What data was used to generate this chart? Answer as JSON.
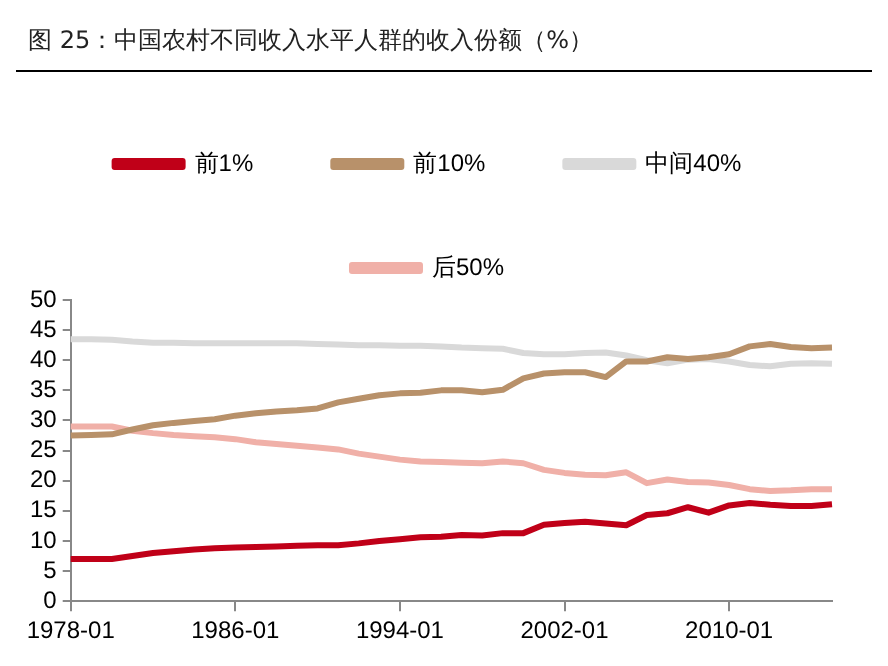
{
  "chart_data": {
    "type": "line",
    "title": "图 25：中国农村不同收入水平人群的收入份额（%）",
    "categories": [
      "1978-01",
      null,
      null,
      null,
      null,
      null,
      null,
      null,
      "1986-01",
      null,
      null,
      null,
      null,
      null,
      null,
      null,
      "1994-01",
      null,
      null,
      null,
      null,
      null,
      null,
      null,
      "2002-01",
      null,
      null,
      null,
      null,
      null,
      null,
      null,
      "2010-01",
      null,
      null,
      null,
      null,
      null
    ],
    "series": [
      {
        "name": "前1%",
        "color": "#c00018",
        "values": [
          7.0,
          7.0,
          7.0,
          7.5,
          8.0,
          8.3,
          8.6,
          8.8,
          8.9,
          9.0,
          9.1,
          9.2,
          9.3,
          9.3,
          9.6,
          10.0,
          10.3,
          10.6,
          10.7,
          11.0,
          10.9,
          11.3,
          11.3,
          12.7,
          13.0,
          13.2,
          12.9,
          12.6,
          14.3,
          14.6,
          15.6,
          14.7,
          15.9,
          16.3,
          16.0,
          15.8,
          15.8,
          16.1
        ]
      },
      {
        "name": "前10%",
        "color": "#b8916a",
        "values": [
          27.5,
          27.6,
          27.7,
          28.5,
          29.2,
          29.6,
          29.9,
          30.2,
          30.8,
          31.2,
          31.5,
          31.7,
          32.0,
          33.0,
          33.6,
          34.2,
          34.5,
          34.6,
          35.0,
          35.0,
          34.7,
          35.1,
          37.0,
          37.8,
          38.0,
          38.0,
          37.2,
          39.8,
          39.8,
          40.5,
          40.2,
          40.5,
          41.0,
          42.3,
          42.7,
          42.2,
          42.0,
          42.1
        ]
      },
      {
        "name": "中间40%",
        "color": "#d9d9d9",
        "values": [
          43.5,
          43.5,
          43.4,
          43.1,
          42.9,
          42.9,
          42.8,
          42.8,
          42.8,
          42.8,
          42.8,
          42.8,
          42.7,
          42.6,
          42.5,
          42.5,
          42.4,
          42.4,
          42.3,
          42.1,
          42.0,
          41.9,
          41.2,
          41.0,
          41.0,
          41.2,
          41.3,
          40.8,
          40.0,
          39.5,
          40.1,
          40.2,
          39.8,
          39.2,
          39.0,
          39.4,
          39.5,
          39.4
        ]
      },
      {
        "name": "后50%",
        "color": "#f0b0a8",
        "values": [
          29.0,
          29.0,
          29.0,
          28.3,
          27.9,
          27.6,
          27.4,
          27.2,
          26.9,
          26.4,
          26.1,
          25.8,
          25.5,
          25.2,
          24.5,
          24.0,
          23.5,
          23.2,
          23.1,
          23.0,
          22.9,
          23.2,
          22.9,
          21.8,
          21.3,
          21.0,
          20.9,
          21.4,
          19.6,
          20.2,
          19.8,
          19.7,
          19.3,
          18.6,
          18.3,
          18.4,
          18.6,
          18.6
        ]
      }
    ],
    "ylim": [
      0,
      50
    ],
    "yticks": [
      0,
      5,
      10,
      15,
      20,
      25,
      30,
      35,
      40,
      45,
      50
    ],
    "grid": false,
    "legend": "top",
    "marker": "none",
    "line_style": "solid"
  }
}
